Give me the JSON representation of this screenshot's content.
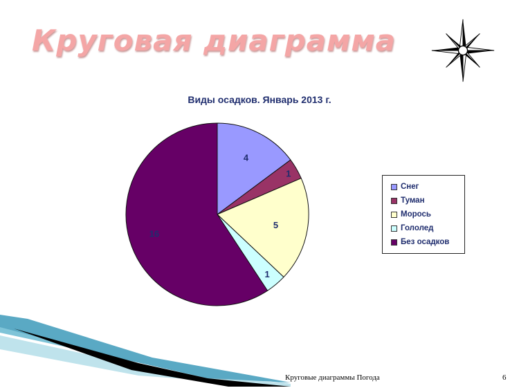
{
  "slide": {
    "title": "Круговая диаграмма",
    "footer": "Круговые диаграммы Погода",
    "page_number": "6"
  },
  "icons": {
    "compass": "compass-rose-icon"
  },
  "colors": {
    "title": "#f4a6a6",
    "text": "#1f2d6e",
    "slice_snow": "#9999ff",
    "slice_fog": "#993366",
    "slice_drizzle": "#ffffcc",
    "slice_ice": "#ccffff",
    "slice_none": "#660066"
  },
  "chart_data": {
    "type": "pie",
    "title": "Виды осадков. Январь 2013 г.",
    "categories": [
      "Снег",
      "Туман",
      "Морось",
      "Гололед",
      "Без осадков"
    ],
    "values": [
      4,
      1,
      5,
      1,
      16
    ],
    "colors": [
      "#9999ff",
      "#993366",
      "#ffffcc",
      "#ccffff",
      "#660066"
    ],
    "labels": [
      "4",
      "1",
      "5",
      "1",
      "16"
    ],
    "legend_position": "right"
  }
}
